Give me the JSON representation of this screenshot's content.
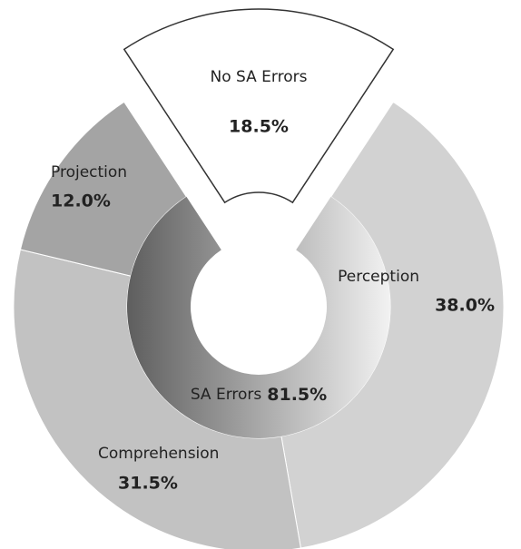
{
  "chart_data": {
    "type": "sunburst",
    "outer": {
      "categories": [
        "No SA Errors",
        "Perception",
        "Comprehension",
        "Projection"
      ],
      "values": [
        18.5,
        38.0,
        31.5,
        12.0
      ],
      "value_labels": [
        "18.5%",
        "38.0%",
        "31.5%",
        "12.0%"
      ],
      "colors": [
        "#ffffff",
        "#d2d2d2",
        "#c2c2c2",
        "#a4a4a4"
      ],
      "explode": [
        true,
        false,
        false,
        false
      ]
    },
    "inner": {
      "categories": [
        "SA Errors"
      ],
      "values": [
        81.5
      ],
      "value_labels": [
        "81.5%"
      ],
      "colors": [
        "#5e5e5e",
        "#f2f2f2"
      ]
    }
  }
}
